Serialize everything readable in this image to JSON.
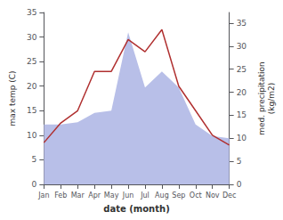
{
  "chart_data": {
    "type": "line",
    "categories": [
      "Jan",
      "Feb",
      "Mar",
      "Apr",
      "May",
      "Jun",
      "Jul",
      "Aug",
      "Sep",
      "Oct",
      "Nov",
      "Dec"
    ],
    "xlabel": "date (month)",
    "ylabel": "max temp (C)",
    "y2label": "med. precipitation\n(kg/m2)",
    "series": [
      {
        "type": "area",
        "axis": "y2",
        "color": "#b8bfe8",
        "values": [
          13.0,
          13.0,
          13.5,
          15.5,
          16.0,
          33.0,
          21.0,
          24.5,
          21.0,
          13.0,
          10.5,
          10.0
        ]
      },
      {
        "type": "line",
        "color": "#b03030",
        "values": [
          8.5,
          12.5,
          15.0,
          23.0,
          23.0,
          29.5,
          27.0,
          31.5,
          20.0,
          15.0,
          10.0,
          8.0
        ]
      }
    ],
    "ylim": [
      0,
      35
    ],
    "yticks": [
      0,
      5,
      10,
      15,
      20,
      25,
      30,
      35
    ],
    "y2lim": [
      0,
      37.3
    ],
    "y2ticks": [
      0,
      5,
      10,
      15,
      20,
      25,
      30,
      35
    ],
    "grid": false
  }
}
